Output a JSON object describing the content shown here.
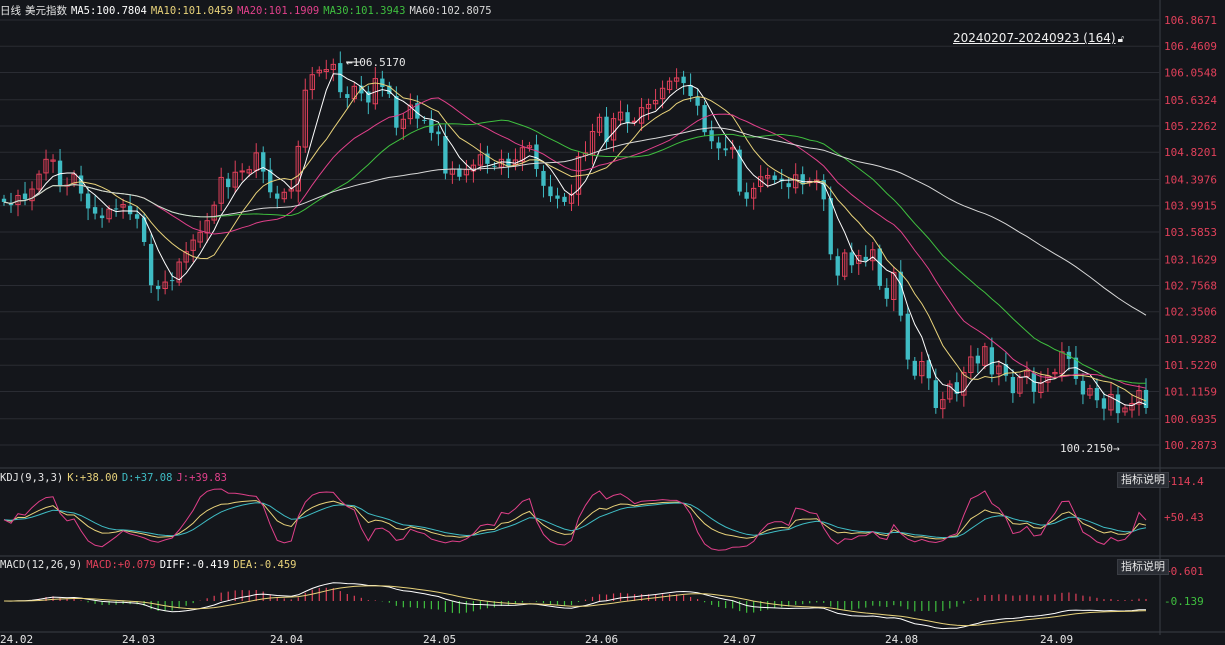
{
  "header": {
    "period": "日线",
    "name": "美元指数",
    "ma5_label": "MA5:",
    "ma5": "100.7804",
    "ma10_label": "MA10:",
    "ma10": "101.0459",
    "ma20_label": "MA20:",
    "ma20": "101.1909",
    "ma30_label": "MA30:",
    "ma30": "101.3943",
    "ma60_label": "MA60:",
    "ma60": "102.8075"
  },
  "range_label": "20240207-20240923 (164)",
  "kdj": {
    "title": "KDJ(9,3,3)",
    "k_label": "K:",
    "k": "+38.00",
    "d_label": "D:",
    "d": "+37.08",
    "j_label": "J:",
    "j": "+39.83",
    "button": "指标说明"
  },
  "macd": {
    "title": "MACD(12,26,9)",
    "macd_label": "MACD:",
    "macd": "+0.079",
    "diff_label": "DIFF:",
    "diff": "-0.419",
    "dea_label": "DEA:",
    "dea": "-0.459",
    "button": "指标说明"
  },
  "colors": {
    "up": "#e0405a",
    "down": "#3fbcc4",
    "ma5": "#ffffff",
    "ma10": "#e8d27a",
    "ma20": "#e0408a",
    "ma30": "#3fbf3f",
    "ma60": "#d8d8d8",
    "background": "#14161b",
    "grid": "#2a2c33"
  },
  "chart_data": {
    "type": "candlestick",
    "x_ticks": [
      "24.02",
      "24.03",
      "24.04",
      "24.05",
      "24.06",
      "24.07",
      "24.08",
      "24.09"
    ],
    "price_axis_labels": [
      "106.8671",
      "106.4609",
      "106.0548",
      "105.6324",
      "105.2262",
      "104.8201",
      "104.3976",
      "103.9915",
      "103.5853",
      "103.1629",
      "102.7568",
      "102.3506",
      "101.9282",
      "101.5220",
      "101.1159",
      "100.6935",
      "100.2873"
    ],
    "high_annotation": "106.5170",
    "low_annotation": "100.2150",
    "ylim": [
      100.2873,
      106.8671
    ],
    "kdj_axis_labels": [
      "+114.4",
      "+50.43"
    ],
    "macd_axis_labels": [
      "+0.601",
      "-0.139"
    ],
    "closes": [
      104.05,
      104.0,
      104.15,
      104.09,
      104.25,
      104.48,
      104.71,
      104.7,
      104.29,
      104.31,
      104.48,
      104.18,
      103.95,
      103.87,
      103.8,
      103.94,
      103.94,
      104.01,
      103.86,
      103.79,
      103.43,
      102.76,
      102.7,
      102.81,
      102.83,
      103.12,
      103.28,
      103.46,
      103.58,
      103.76,
      104.0,
      104.43,
      104.28,
      104.51,
      104.53,
      104.55,
      104.81,
      104.52,
      104.2,
      104.1,
      104.2,
      104.25,
      104.91,
      105.78,
      106.02,
      106.09,
      106.1,
      106.18,
      105.75,
      105.66,
      105.84,
      105.73,
      105.59,
      105.96,
      105.83,
      105.72,
      105.2,
      105.33,
      105.55,
      105.34,
      105.32,
      105.12,
      105.1,
      104.49,
      104.56,
      104.44,
      104.55,
      104.62,
      104.78,
      104.64,
      104.6,
      104.71,
      104.6,
      104.7,
      104.89,
      104.92,
      104.56,
      104.3,
      104.14,
      104.1,
      104.05,
      104.17,
      104.75,
      104.81,
      105.14,
      105.36,
      104.98,
      105.34,
      105.44,
      105.27,
      105.3,
      105.51,
      105.56,
      105.62,
      105.81,
      105.92,
      105.97,
      105.89,
      105.69,
      105.54,
      105.13,
      104.99,
      104.88,
      104.85,
      104.89,
      104.21,
      104.1,
      104.26,
      104.44,
      104.46,
      104.39,
      104.37,
      104.28,
      104.47,
      104.32,
      104.37,
      104.39,
      104.09,
      103.24,
      102.91,
      103.26,
      103.07,
      103.22,
      103.14,
      103.31,
      102.75,
      102.55,
      102.96,
      102.29,
      101.61,
      101.36,
      101.58,
      101.32,
      100.86,
      100.99,
      101.23,
      101.08,
      101.41,
      101.65,
      101.55,
      101.81,
      101.38,
      101.51,
      101.36,
      101.09,
      101.33,
      101.43,
      101.11,
      101.25,
      101.36,
      101.41,
      101.73,
      101.62,
      101.31,
      101.07,
      101.16,
      100.98,
      100.85,
      101.07,
      100.78,
      100.86,
      100.93,
      101.13,
      100.86
    ]
  }
}
